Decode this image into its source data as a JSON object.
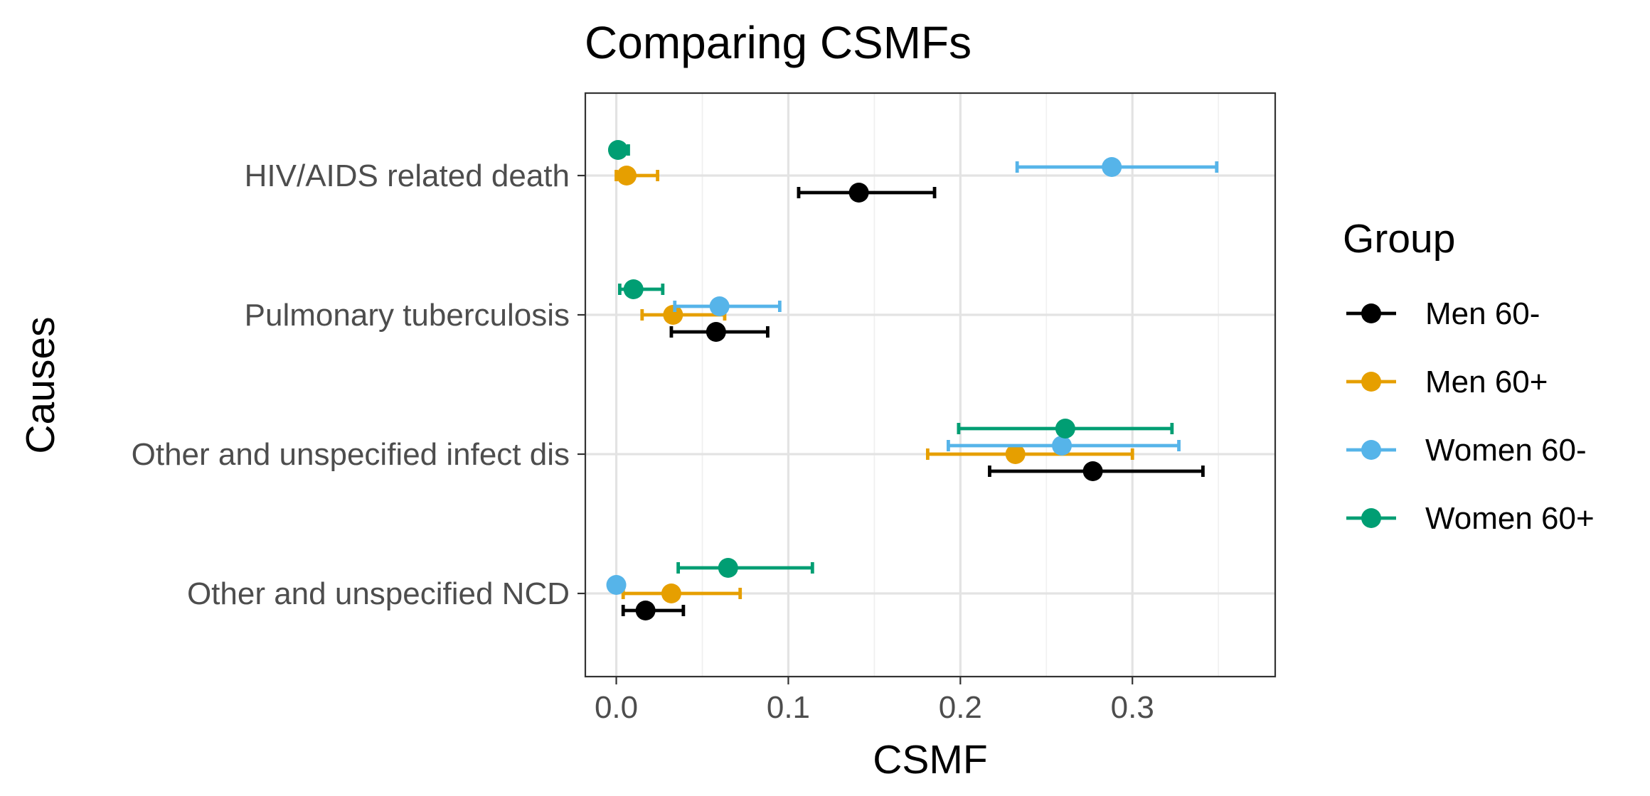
{
  "chart_data": {
    "type": "scatter",
    "title": "Comparing CSMFs",
    "xlabel": "CSMF",
    "ylabel": "Causes",
    "xlim": [
      -0.018,
      0.383
    ],
    "x_ticks": [
      0.0,
      0.1,
      0.2,
      0.3
    ],
    "x_tick_labels": [
      "0.0",
      "0.1",
      "0.2",
      "0.3"
    ],
    "grid": true,
    "categories": [
      "HIV/AIDS related death",
      "Pulmonary tuberculosis",
      "Other and unspecified infect dis",
      "Other and unspecified NCD"
    ],
    "legend": {
      "title": "Group",
      "position": "right"
    },
    "series": [
      {
        "name": "Men 60-",
        "color": "#000000",
        "points": [
          {
            "cause": "HIV/AIDS related death",
            "value": 0.141,
            "lower": 0.106,
            "upper": 0.185
          },
          {
            "cause": "Pulmonary tuberculosis",
            "value": 0.058,
            "lower": 0.032,
            "upper": 0.088
          },
          {
            "cause": "Other and unspecified infect dis",
            "value": 0.277,
            "lower": 0.217,
            "upper": 0.341
          },
          {
            "cause": "Other and unspecified NCD",
            "value": 0.017,
            "lower": 0.004,
            "upper": 0.039
          }
        ]
      },
      {
        "name": "Men 60+",
        "color": "#E69F00",
        "points": [
          {
            "cause": "HIV/AIDS related death",
            "value": 0.006,
            "lower": 0.0,
            "upper": 0.024
          },
          {
            "cause": "Pulmonary tuberculosis",
            "value": 0.033,
            "lower": 0.015,
            "upper": 0.063
          },
          {
            "cause": "Other and unspecified infect dis",
            "value": 0.232,
            "lower": 0.181,
            "upper": 0.3
          },
          {
            "cause": "Other and unspecified NCD",
            "value": 0.032,
            "lower": 0.004,
            "upper": 0.072
          }
        ]
      },
      {
        "name": "Women 60-",
        "color": "#56B4E9",
        "points": [
          {
            "cause": "HIV/AIDS related death",
            "value": 0.288,
            "lower": 0.233,
            "upper": 0.349
          },
          {
            "cause": "Pulmonary tuberculosis",
            "value": 0.06,
            "lower": 0.034,
            "upper": 0.095
          },
          {
            "cause": "Other and unspecified infect dis",
            "value": 0.259,
            "lower": 0.193,
            "upper": 0.327
          },
          {
            "cause": "Other and unspecified NCD",
            "value": 0.0,
            "lower": 0.0,
            "upper": 0.0
          }
        ]
      },
      {
        "name": "Women 60+",
        "color": "#009E73",
        "points": [
          {
            "cause": "HIV/AIDS related death",
            "value": 0.001,
            "lower": 0.0,
            "upper": 0.007
          },
          {
            "cause": "Pulmonary tuberculosis",
            "value": 0.01,
            "lower": 0.002,
            "upper": 0.027
          },
          {
            "cause": "Other and unspecified infect dis",
            "value": 0.261,
            "lower": 0.199,
            "upper": 0.323
          },
          {
            "cause": "Other and unspecified NCD",
            "value": 0.065,
            "lower": 0.036,
            "upper": 0.114
          }
        ]
      }
    ]
  }
}
